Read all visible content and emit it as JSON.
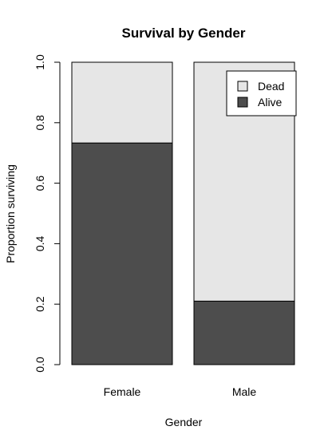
{
  "chart_data": {
    "type": "bar",
    "stacked": true,
    "title": "Survival by Gender",
    "xlabel": "Gender",
    "ylabel": "Proportion surviving",
    "categories": [
      "Female",
      "Male"
    ],
    "series": [
      {
        "name": "Alive",
        "values": [
          0.733,
          0.21
        ],
        "color": "#4d4d4d"
      },
      {
        "name": "Dead",
        "values": [
          0.267,
          0.79
        ],
        "color": "#e6e6e6"
      }
    ],
    "ylim": [
      0,
      1
    ],
    "yticks": [
      "0.0",
      "0.2",
      "0.4",
      "0.6",
      "0.8",
      "1.0"
    ],
    "legend": {
      "position": "top-right",
      "entries": [
        "Dead",
        "Alive"
      ]
    },
    "grid": false
  }
}
